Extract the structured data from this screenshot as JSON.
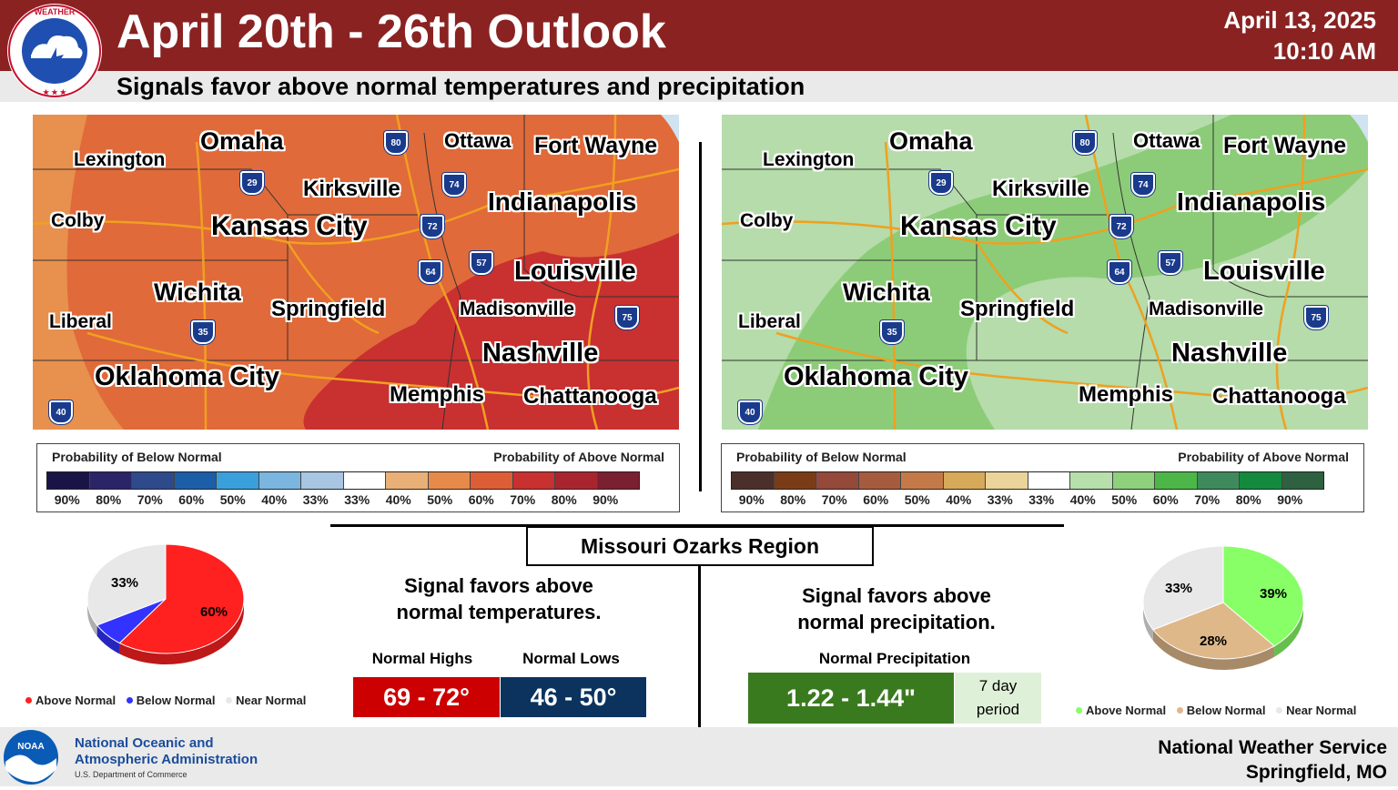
{
  "header": {
    "title": "April 20th - 26th Outlook",
    "subtitle": "Signals favor above normal temperatures and precipitation",
    "date": "April 13, 2025",
    "time": "10:10 AM",
    "nws_logo_text": "NATIONAL WEATHER SERVICE"
  },
  "colors": {
    "header_bg": "#8a2222",
    "temp_above": "#ff2020",
    "temp_below": "#3333ff",
    "near_normal": "#e8e8e8",
    "precip_above": "#88ff66",
    "precip_below": "#dfb88a",
    "highs_box": "#cc0000",
    "lows_box": "#0b335e",
    "precip_box": "#3a7a1f"
  },
  "map_labels": {
    "cities": [
      "Omaha",
      "Ottawa",
      "Fort Wayne",
      "Lexington",
      "Kirksville",
      "Indianapolis",
      "Colby",
      "Kansas City",
      "Louisville",
      "Wichita",
      "Springfield",
      "Madisonville",
      "Liberal",
      "Nashville",
      "Oklahoma City",
      "Memphis",
      "Chattanooga"
    ],
    "interstates": [
      "80",
      "29",
      "74",
      "72",
      "64",
      "57",
      "75",
      "35",
      "40"
    ]
  },
  "legends": {
    "below_label": "Probability of Below Normal",
    "above_label": "Probability of Above Normal",
    "ticks": [
      "90%",
      "80%",
      "70%",
      "60%",
      "50%",
      "40%",
      "33%",
      "33%",
      "40%",
      "50%",
      "60%",
      "70%",
      "80%",
      "90%"
    ],
    "temp_colors": [
      "#1a1446",
      "#2b2467",
      "#2f4a8a",
      "#1d5ea8",
      "#3aa0dc",
      "#7bb6e0",
      "#a8c5e2",
      "#ffffff",
      "#e8b077",
      "#e58a4a",
      "#dd5d36",
      "#c93030",
      "#a82530",
      "#7a2030"
    ],
    "precip_colors": [
      "#4b2f2a",
      "#7a3c16",
      "#94493a",
      "#a65b3f",
      "#c47a48",
      "#d7a95a",
      "#ebd49a",
      "#ffffff",
      "#b7dfab",
      "#8ed07b",
      "#4cb748",
      "#3f8a5c",
      "#138a3d",
      "#2d6140"
    ]
  },
  "region": {
    "title": "Missouri Ozarks Region",
    "temp_msg_1": "Signal favors above",
    "temp_msg_2": "normal temperatures.",
    "precip_msg_1": "Signal favors above",
    "precip_msg_2": "normal precipitation.",
    "highs_label": "Normal Highs",
    "lows_label": "Normal Lows",
    "highs_value": "69 - 72°",
    "lows_value": "46 - 50°",
    "precip_label": "Normal Precipitation",
    "precip_value": "1.22 - 1.44\"",
    "period_1": "7 day",
    "period_2": "period"
  },
  "temp_pie": {
    "above_pct": "60%",
    "below_pct": "7%",
    "near_pct": "33%",
    "above_value": 60,
    "below_value": 7,
    "near_value": 33,
    "legend": [
      "Above Normal",
      "Below Normal",
      "Near Normal"
    ]
  },
  "precip_pie": {
    "above_pct": "39%",
    "below_pct": "28%",
    "near_pct": "33%",
    "above_value": 39,
    "below_value": 28,
    "near_value": 33,
    "legend": [
      "Above Normal",
      "Below Normal",
      "Near Normal"
    ]
  },
  "footer": {
    "noaa_line1": "National Oceanic and",
    "noaa_line2": "Atmospheric Administration",
    "noaa_line3": "U.S. Department of Commerce",
    "noaa_logo_text": "NOAA",
    "office_line1": "National Weather Service",
    "office_line2": "Springfield, MO"
  }
}
